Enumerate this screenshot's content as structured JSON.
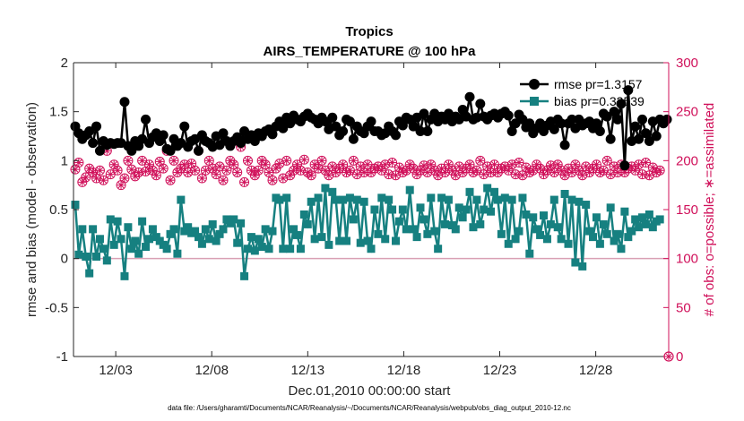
{
  "chart_data": {
    "type": "line",
    "title": "Tropics",
    "subtitle": "AIRS_TEMPERATURE @ 100 hPa",
    "xlabel": "Dec.01,2010 00:00:00 start",
    "ylabel": "rmse and bias (model - observation)",
    "ylabel_right": "# of obs: o=possible; ∗=assimilated",
    "footer": "data file: /Users/gharamti/Documents/NCAR/Reanalysis/~/Documents/NCAR/Reanalysis/webpub/obs_diag_output_2010-12.nc",
    "xlim": [
      0.8,
      31.8
    ],
    "ylim": [
      -1,
      2
    ],
    "ylim_right": [
      0,
      300
    ],
    "x_ticks": [
      3,
      8,
      13,
      18,
      23,
      28
    ],
    "x_tick_labels": [
      "12/03",
      "12/08",
      "12/13",
      "12/18",
      "12/23",
      "12/28"
    ],
    "y_ticks": [
      -1,
      -0.5,
      0,
      0.5,
      1,
      1.5,
      2
    ],
    "y_tick_labels": [
      "-1",
      "-0.5",
      "0",
      "0.5",
      "1",
      "1.5",
      "2"
    ],
    "y_ticks_right": [
      0,
      50,
      100,
      150,
      200,
      250,
      300
    ],
    "y_tick_labels_right": [
      "0",
      "50",
      "100",
      "150",
      "200",
      "250",
      "300"
    ],
    "colors": {
      "rmse": "#000000",
      "bias": "#168080",
      "obs": "#d0105a",
      "zero_line": "#d9a0b4",
      "axis": "#262626"
    },
    "series": [
      {
        "name": "rmse",
        "legend": "rmse pr=1.3157",
        "marker": "circle",
        "axis": "left",
        "values": [
          1.35,
          1.28,
          1.22,
          1.26,
          1.3,
          1.18,
          1.35,
          1.1,
          1.2,
          1.16,
          1.18,
          1.17,
          1.18,
          1.18,
          1.6,
          1.15,
          1.1,
          1.2,
          1.15,
          1.22,
          1.42,
          1.18,
          1.24,
          1.28,
          1.2,
          1.26,
          1.12,
          1.1,
          1.22,
          1.15,
          1.18,
          1.35,
          1.14,
          1.2,
          1.22,
          1.1,
          1.26,
          1.2,
          1.18,
          1.14,
          1.25,
          1.16,
          1.28,
          1.2,
          1.15,
          1.2,
          1.24,
          1.18,
          1.3,
          1.22,
          1.26,
          1.2,
          1.28,
          1.25,
          1.3,
          1.32,
          1.27,
          1.35,
          1.4,
          1.33,
          1.44,
          1.38,
          1.46,
          1.42,
          1.4,
          1.45,
          1.48,
          1.44,
          1.42,
          1.38,
          1.44,
          1.4,
          1.32,
          1.44,
          1.35,
          1.26,
          1.3,
          1.42,
          1.4,
          1.22,
          1.35,
          1.3,
          1.28,
          1.35,
          1.4,
          1.3,
          1.3,
          1.26,
          1.28,
          1.35,
          1.3,
          1.26,
          1.4,
          1.36,
          1.44,
          1.42,
          1.35,
          1.44,
          1.3,
          1.48,
          1.3,
          1.42,
          1.48,
          1.4,
          1.45,
          1.42,
          1.48,
          1.4,
          1.45,
          1.42,
          1.52,
          1.45,
          1.65,
          1.42,
          1.44,
          1.58,
          1.45,
          1.42,
          1.46,
          1.48,
          1.44,
          1.48,
          1.5,
          1.46,
          1.3,
          1.38,
          1.47,
          1.42,
          1.34,
          1.38,
          1.28,
          1.33,
          1.38,
          1.3,
          1.36,
          1.4,
          1.32,
          1.42,
          1.38,
          1.16,
          1.38,
          1.42,
          1.33,
          1.42,
          1.36,
          1.38,
          1.4,
          1.33,
          1.38,
          1.3,
          1.48,
          1.45,
          1.22,
          1.5,
          1.42,
          1.58,
          0.95,
          1.72,
          1.2,
          1.35,
          1.22,
          1.42,
          1.28,
          1.2,
          1.4,
          1.25,
          1.42,
          1.38,
          1.42
        ]
      },
      {
        "name": "bias",
        "legend": "bias pr=0.32539",
        "marker": "square",
        "axis": "left",
        "values": [
          0.55,
          0.04,
          0.3,
          0.02,
          -0.15,
          0.3,
          0.02,
          0.2,
          0.1,
          -0.02,
          0.4,
          0.14,
          0.38,
          0.2,
          -0.18,
          0.32,
          0.1,
          0.18,
          0.05,
          0.38,
          0.12,
          0.2,
          0.3,
          0.22,
          0.18,
          0.14,
          0.1,
          0.25,
          0.3,
          0.05,
          0.6,
          0.28,
          0.32,
          0.26,
          0.28,
          0.22,
          0.15,
          0.3,
          0.2,
          0.35,
          0.18,
          0.25,
          0.3,
          0.4,
          0.36,
          0.4,
          0.16,
          0.36,
          -0.18,
          0.1,
          0.22,
          0.08,
          0.2,
          0.12,
          0.3,
          0.1,
          0.28,
          0.62,
          0.6,
          0.1,
          0.62,
          0.1,
          0.3,
          0.24,
          0.1,
          0.45,
          0.35,
          0.58,
          0.2,
          0.62,
          0.22,
          0.72,
          0.14,
          0.68,
          0.6,
          0.18,
          0.6,
          0.18,
          0.62,
          0.4,
          0.6,
          0.16,
          0.58,
          0.18,
          0.1,
          0.5,
          0.25,
          0.62,
          0.2,
          0.6,
          0.5,
          0.18,
          0.38,
          0.5,
          0.3,
          0.7,
          0.3,
          0.22,
          0.52,
          0.4,
          0.25,
          0.62,
          0.28,
          0.1,
          0.62,
          0.35,
          0.6,
          0.34,
          0.3,
          0.52,
          0.42,
          0.5,
          0.68,
          0.32,
          0.6,
          0.35,
          0.5,
          0.72,
          0.48,
          0.68,
          0.6,
          0.25,
          0.62,
          0.15,
          0.6,
          0.2,
          0.28,
          0.62,
          0.45,
          0.05,
          0.42,
          0.3,
          0.24,
          0.44,
          0.2,
          0.35,
          0.6,
          0.32,
          0.2,
          0.66,
          0.15,
          0.6,
          -0.04,
          0.58,
          -0.08,
          0.55,
          0.28,
          0.22,
          0.42,
          0.15,
          0.35,
          0.25,
          0.52,
          0.18,
          0.25,
          0.1,
          0.48,
          0.22,
          0.28,
          0.4,
          0.32,
          0.42,
          0.35,
          0.45,
          0.32,
          0.38,
          0.4
        ]
      },
      {
        "name": "obs_possible",
        "marker": "open-circle",
        "axis": "right",
        "values": [
          191,
          198,
          178,
          183,
          192,
          188,
          182,
          190,
          180,
          210,
          186,
          196,
          190,
          175,
          182,
          200,
          191,
          184,
          188,
          200,
          189,
          196,
          190,
          185,
          199,
          192,
          210,
          180,
          200,
          188,
          192,
          196,
          188,
          197,
          190,
          210,
          182,
          190,
          200,
          192,
          186,
          194,
          180,
          190,
          200,
          196,
          188,
          214,
          178,
          200,
          190,
          185,
          190,
          200,
          196,
          188,
          180,
          192,
          197,
          182,
          200,
          185,
          190,
          196,
          190,
          201,
          188,
          185,
          196,
          192,
          200,
          190,
          185,
          194,
          188,
          192,
          196,
          188,
          190,
          200,
          186,
          194,
          188,
          196,
          188,
          192,
          194,
          190,
          196,
          186,
          198,
          185,
          193,
          188,
          190,
          196,
          192,
          186,
          190,
          195,
          188,
          196,
          190,
          185,
          192,
          188,
          196,
          190,
          185,
          194,
          188,
          192,
          196,
          188,
          190,
          200,
          186,
          194,
          188,
          196,
          188,
          192,
          194,
          190,
          196,
          186,
          198,
          185,
          193,
          188,
          190,
          196,
          192,
          186,
          190,
          195,
          188,
          196,
          190,
          185,
          192,
          188,
          196,
          190,
          185,
          194,
          188,
          192,
          196,
          188,
          190,
          200,
          186,
          194,
          188,
          196,
          188,
          192,
          194,
          190,
          196,
          186,
          198,
          185,
          193,
          188,
          190
        ]
      },
      {
        "name": "obs_assimilated",
        "marker": "asterisk",
        "axis": "right",
        "values": [
          191,
          198,
          178,
          183,
          192,
          188,
          182,
          190,
          180,
          210,
          186,
          196,
          190,
          175,
          182,
          200,
          191,
          184,
          188,
          200,
          189,
          196,
          190,
          185,
          199,
          192,
          210,
          180,
          200,
          188,
          192,
          196,
          188,
          197,
          190,
          210,
          182,
          190,
          200,
          192,
          186,
          194,
          180,
          190,
          200,
          196,
          188,
          214,
          178,
          200,
          190,
          185,
          190,
          200,
          196,
          188,
          180,
          192,
          197,
          182,
          200,
          185,
          190,
          196,
          190,
          201,
          188,
          185,
          196,
          192,
          200,
          190,
          185,
          194,
          188,
          192,
          196,
          188,
          190,
          200,
          186,
          194,
          188,
          196,
          188,
          192,
          194,
          190,
          196,
          186,
          198,
          185,
          193,
          188,
          190,
          196,
          192,
          186,
          190,
          195,
          188,
          196,
          190,
          185,
          192,
          188,
          196,
          190,
          185,
          194,
          188,
          192,
          196,
          188,
          190,
          200,
          186,
          194,
          188,
          196,
          188,
          192,
          194,
          190,
          196,
          186,
          198,
          185,
          193,
          188,
          190,
          196,
          192,
          186,
          190,
          195,
          188,
          196,
          190,
          185,
          192,
          188,
          196,
          190,
          185,
          194,
          188,
          192,
          196,
          188,
          190,
          200,
          186,
          194,
          188,
          196,
          188,
          192,
          194,
          190,
          196,
          186,
          198,
          185,
          193,
          188,
          190
        ]
      },
      {
        "name": "obs_assimilated_zero_marker",
        "marker": "open-circle+asterisk",
        "axis": "right",
        "x": [
          31.8
        ],
        "values": [
          0
        ]
      }
    ]
  }
}
